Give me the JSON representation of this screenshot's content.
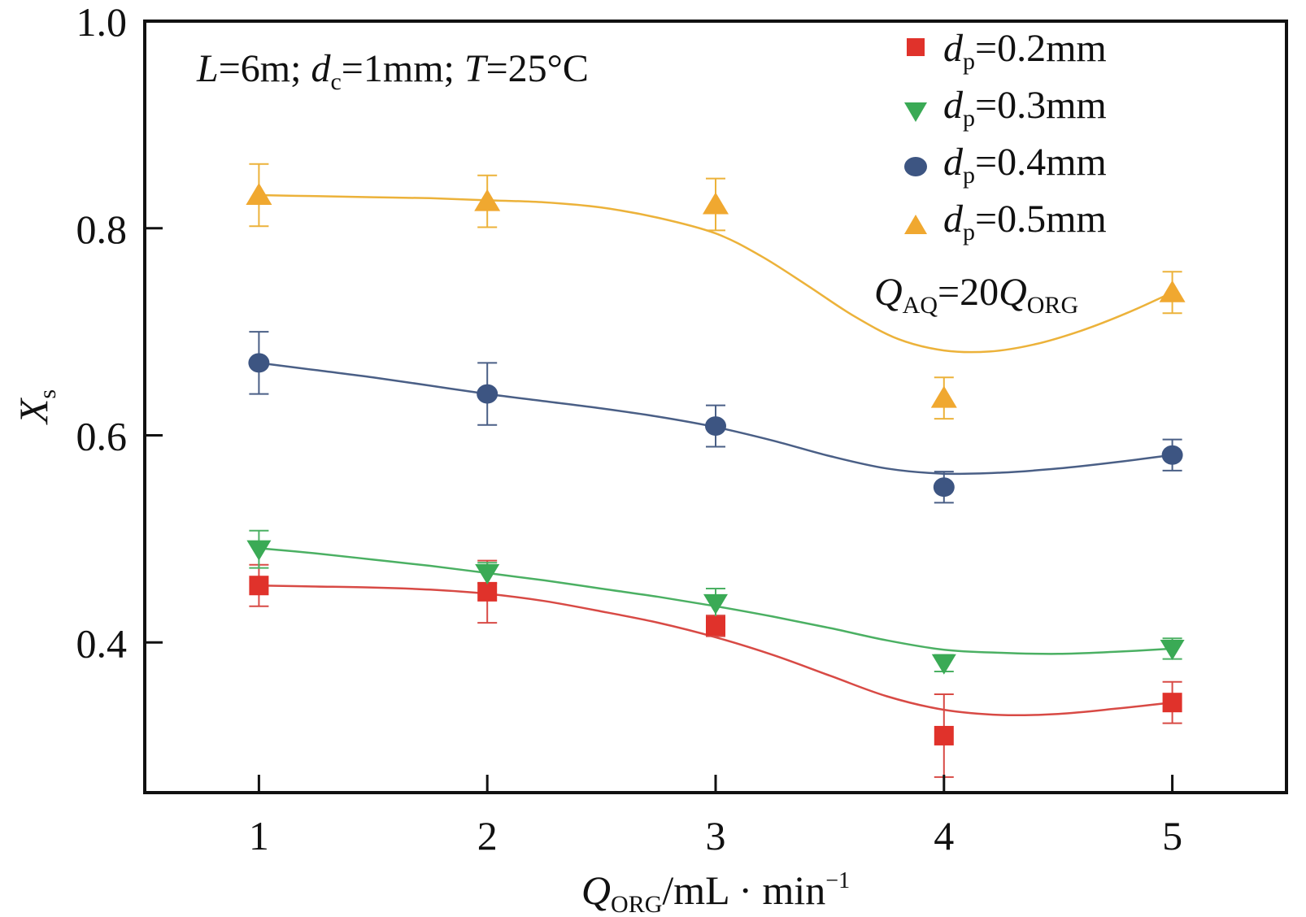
{
  "chart_data": {
    "type": "scatter",
    "title": "",
    "xlabel": {
      "main": "Q",
      "sub": "ORG",
      "unit": "/mL · min",
      "sup": "−1"
    },
    "ylabel": {
      "main": "X",
      "sub": "s"
    },
    "xlim": [
      0.5,
      5.5
    ],
    "ylim": [
      0.255,
      1.0
    ],
    "x_ticks": [
      1,
      2,
      3,
      4,
      5
    ],
    "x_tick_labels": [
      "1",
      "2",
      "3",
      "4",
      "5"
    ],
    "y_ticks": [
      0.4,
      0.6,
      0.8,
      1.0
    ],
    "y_tick_labels": [
      "0.4",
      "0.6",
      "0.8",
      "1.0"
    ],
    "grid": false,
    "legend_position": "top-right",
    "annotations": {
      "conditions": {
        "L_sym": "L",
        "L_val": "=6m; ",
        "d_sym": "d",
        "d_sub": "c",
        "d_val": "=1mm; ",
        "T_sym": "T",
        "T_val": "=25°C"
      },
      "flow_ratio": {
        "q1": "Q",
        "q1_sub": "AQ",
        "mid": "=20",
        "q2": "Q",
        "q2_sub": "ORG"
      }
    },
    "series": [
      {
        "name": "dp=0.2mm",
        "legend": {
          "sym": "d",
          "sub": "p",
          "val": "=0.2mm"
        },
        "marker": "square",
        "color": "#e0322b",
        "line_color": "#d84a45",
        "x": [
          1,
          2,
          3,
          4,
          5
        ],
        "y": [
          0.455,
          0.449,
          0.416,
          0.31,
          0.342
        ],
        "err": [
          0.02,
          0.03,
          0.01,
          0.04,
          0.02
        ],
        "fit": [
          [
            1.0,
            0.455
          ],
          [
            1.25,
            0.454
          ],
          [
            1.5,
            0.453
          ],
          [
            1.75,
            0.451
          ],
          [
            2.0,
            0.447
          ],
          [
            2.25,
            0.44
          ],
          [
            2.5,
            0.43
          ],
          [
            2.75,
            0.419
          ],
          [
            3.0,
            0.405
          ],
          [
            3.25,
            0.388
          ],
          [
            3.5,
            0.368
          ],
          [
            3.75,
            0.348
          ],
          [
            4.0,
            0.335
          ],
          [
            4.25,
            0.33
          ],
          [
            4.5,
            0.331
          ],
          [
            4.75,
            0.336
          ],
          [
            5.0,
            0.342
          ]
        ]
      },
      {
        "name": "dp=0.3mm",
        "legend": {
          "sym": "d",
          "sub": "p",
          "val": "=0.3mm"
        },
        "marker": "triangle-down",
        "color": "#3aaa55",
        "line_color": "#4bb063",
        "x": [
          1,
          2,
          3,
          4,
          5
        ],
        "y": [
          0.49,
          0.467,
          0.438,
          0.38,
          0.394
        ],
        "err": [
          0.018,
          0.01,
          0.014,
          0.008,
          0.01
        ],
        "fit": [
          [
            1.0,
            0.491
          ],
          [
            1.25,
            0.486
          ],
          [
            1.5,
            0.48
          ],
          [
            1.75,
            0.474
          ],
          [
            2.0,
            0.467
          ],
          [
            2.25,
            0.46
          ],
          [
            2.5,
            0.452
          ],
          [
            2.75,
            0.444
          ],
          [
            3.0,
            0.435
          ],
          [
            3.25,
            0.425
          ],
          [
            3.5,
            0.414
          ],
          [
            3.75,
            0.402
          ],
          [
            4.0,
            0.393
          ],
          [
            4.25,
            0.39
          ],
          [
            4.5,
            0.389
          ],
          [
            4.75,
            0.391
          ],
          [
            5.0,
            0.394
          ]
        ]
      },
      {
        "name": "dp=0.4mm",
        "legend": {
          "sym": "d",
          "sub": "p",
          "val": "=0.4mm"
        },
        "marker": "circle",
        "color": "#3d5582",
        "line_color": "#4a5f86",
        "x": [
          1,
          2,
          3,
          4,
          5
        ],
        "y": [
          0.67,
          0.64,
          0.609,
          0.55,
          0.581
        ],
        "err": [
          0.03,
          0.03,
          0.02,
          0.015,
          0.015
        ],
        "fit": [
          [
            1.0,
            0.67
          ],
          [
            1.25,
            0.663
          ],
          [
            1.5,
            0.656
          ],
          [
            1.75,
            0.648
          ],
          [
            2.0,
            0.64
          ],
          [
            2.25,
            0.633
          ],
          [
            2.5,
            0.626
          ],
          [
            2.75,
            0.618
          ],
          [
            3.0,
            0.608
          ],
          [
            3.25,
            0.595
          ],
          [
            3.5,
            0.58
          ],
          [
            3.75,
            0.568
          ],
          [
            4.0,
            0.563
          ],
          [
            4.25,
            0.564
          ],
          [
            4.5,
            0.568
          ],
          [
            4.75,
            0.574
          ],
          [
            5.0,
            0.581
          ]
        ]
      },
      {
        "name": "dp=0.5mm",
        "legend": {
          "sym": "d",
          "sub": "p",
          "val": "=0.5mm"
        },
        "marker": "triangle-up",
        "color": "#f0a830",
        "line_color": "#ecb23a",
        "x": [
          1,
          2,
          3,
          4,
          5
        ],
        "y": [
          0.832,
          0.826,
          0.823,
          0.636,
          0.738
        ],
        "err": [
          0.03,
          0.025,
          0.025,
          0.02,
          0.02
        ],
        "fit": [
          [
            1.0,
            0.832
          ],
          [
            1.25,
            0.831
          ],
          [
            1.5,
            0.83
          ],
          [
            1.75,
            0.829
          ],
          [
            2.0,
            0.827
          ],
          [
            2.25,
            0.825
          ],
          [
            2.5,
            0.82
          ],
          [
            2.75,
            0.81
          ],
          [
            3.0,
            0.795
          ],
          [
            3.2,
            0.773
          ],
          [
            3.4,
            0.745
          ],
          [
            3.6,
            0.716
          ],
          [
            3.8,
            0.693
          ],
          [
            4.0,
            0.682
          ],
          [
            4.2,
            0.681
          ],
          [
            4.4,
            0.688
          ],
          [
            4.6,
            0.701
          ],
          [
            4.8,
            0.718
          ],
          [
            5.0,
            0.738
          ]
        ]
      }
    ]
  }
}
